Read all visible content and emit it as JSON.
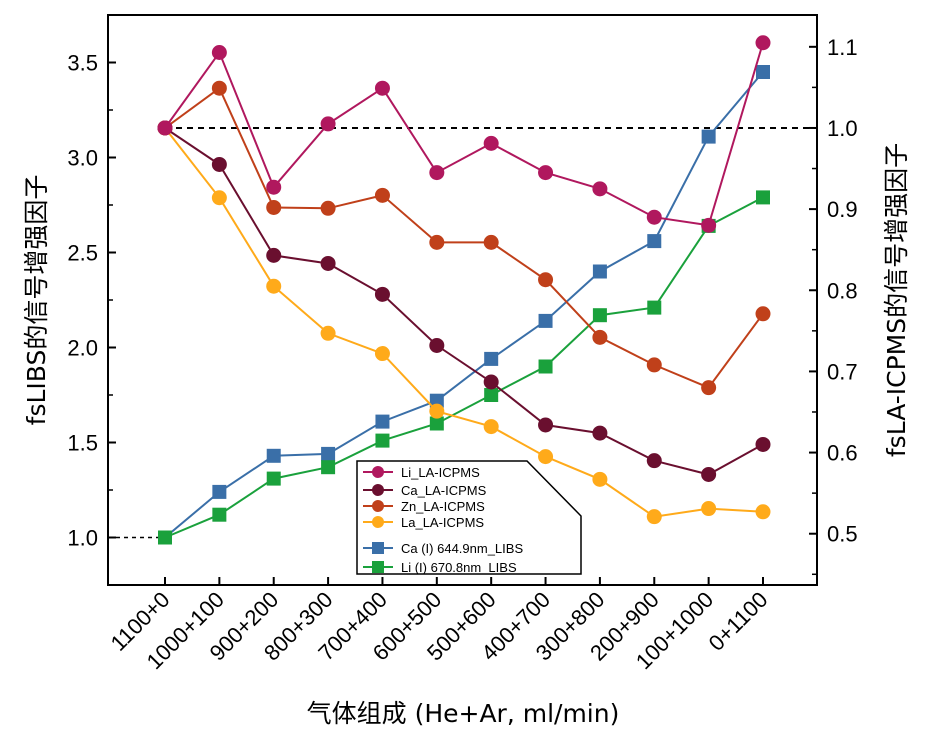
{
  "chart_data": {
    "type": "line",
    "categories": [
      "1100+0",
      "1000+100",
      "900+200",
      "800+300",
      "700+400",
      "600+500",
      "500+600",
      "400+700",
      "300+800",
      "200+900",
      "100+1000",
      "0+1100"
    ],
    "xlabel": "气体组成 (He+Ar, ml/min)",
    "ylabel_left": "fsLIBS的信号增强因子",
    "ylabel_right": "fsLA-ICPMS的信号增强因子",
    "ylim_left": [
      0.75,
      3.75
    ],
    "ylim_right": [
      0.4368,
      1.1392
    ],
    "yticks_left": [
      "1.0",
      "1.5",
      "2.0",
      "2.5",
      "3.0",
      "3.5"
    ],
    "yticks_right": [
      "0.5",
      "0.6",
      "0.7",
      "0.8",
      "0.9",
      "1.0",
      "1.1"
    ],
    "reference_lines": [
      {
        "axis": "right",
        "value": 1.0,
        "style": "dashed"
      },
      {
        "axis": "left",
        "value": 1.0,
        "style": "dashed",
        "extent": "left-edge-to-first-point"
      }
    ],
    "grid": false,
    "legend_position": "bottom-center",
    "series": [
      {
        "name": "Li_LA-ICPMS",
        "axis": "right",
        "marker": "circle",
        "color": "#B0185E",
        "values": [
          1.0,
          1.093,
          0.927,
          1.005,
          1.049,
          0.945,
          0.981,
          0.945,
          0.925,
          0.89,
          0.88,
          1.105
        ]
      },
      {
        "name": "Ca_LA-ICPMS",
        "axis": "right",
        "marker": "circle",
        "color": "#6A0F2F",
        "values": [
          1.0,
          0.955,
          0.843,
          0.833,
          0.795,
          0.732,
          0.687,
          0.634,
          0.624,
          0.59,
          0.573,
          0.61
        ]
      },
      {
        "name": "Zn_LA-ICPMS",
        "axis": "right",
        "marker": "circle",
        "color": "#C0401A",
        "values": [
          1.0,
          1.049,
          0.902,
          0.901,
          0.917,
          0.859,
          0.859,
          0.813,
          0.742,
          0.708,
          0.68,
          0.771
        ]
      },
      {
        "name": "La_LA-ICPMS",
        "axis": "right",
        "marker": "circle",
        "color": "#FFAA1A",
        "values": [
          1.0,
          0.914,
          0.805,
          0.747,
          0.722,
          0.651,
          0.632,
          0.595,
          0.567,
          0.521,
          0.531,
          0.527
        ]
      },
      {
        "name": "Ca (I) 644.9nm_LIBS",
        "axis": "left",
        "marker": "square",
        "color": "#3A6FA8",
        "values": [
          1.0,
          1.24,
          1.43,
          1.44,
          1.61,
          1.72,
          1.94,
          2.14,
          2.4,
          2.56,
          3.11,
          3.45
        ]
      },
      {
        "name": "Li (I) 670.8nm_LIBS",
        "axis": "left",
        "marker": "square",
        "color": "#1AA13C",
        "values": [
          1.0,
          1.12,
          1.31,
          1.37,
          1.51,
          1.6,
          1.75,
          1.9,
          2.17,
          2.21,
          2.64,
          2.79
        ]
      }
    ]
  }
}
